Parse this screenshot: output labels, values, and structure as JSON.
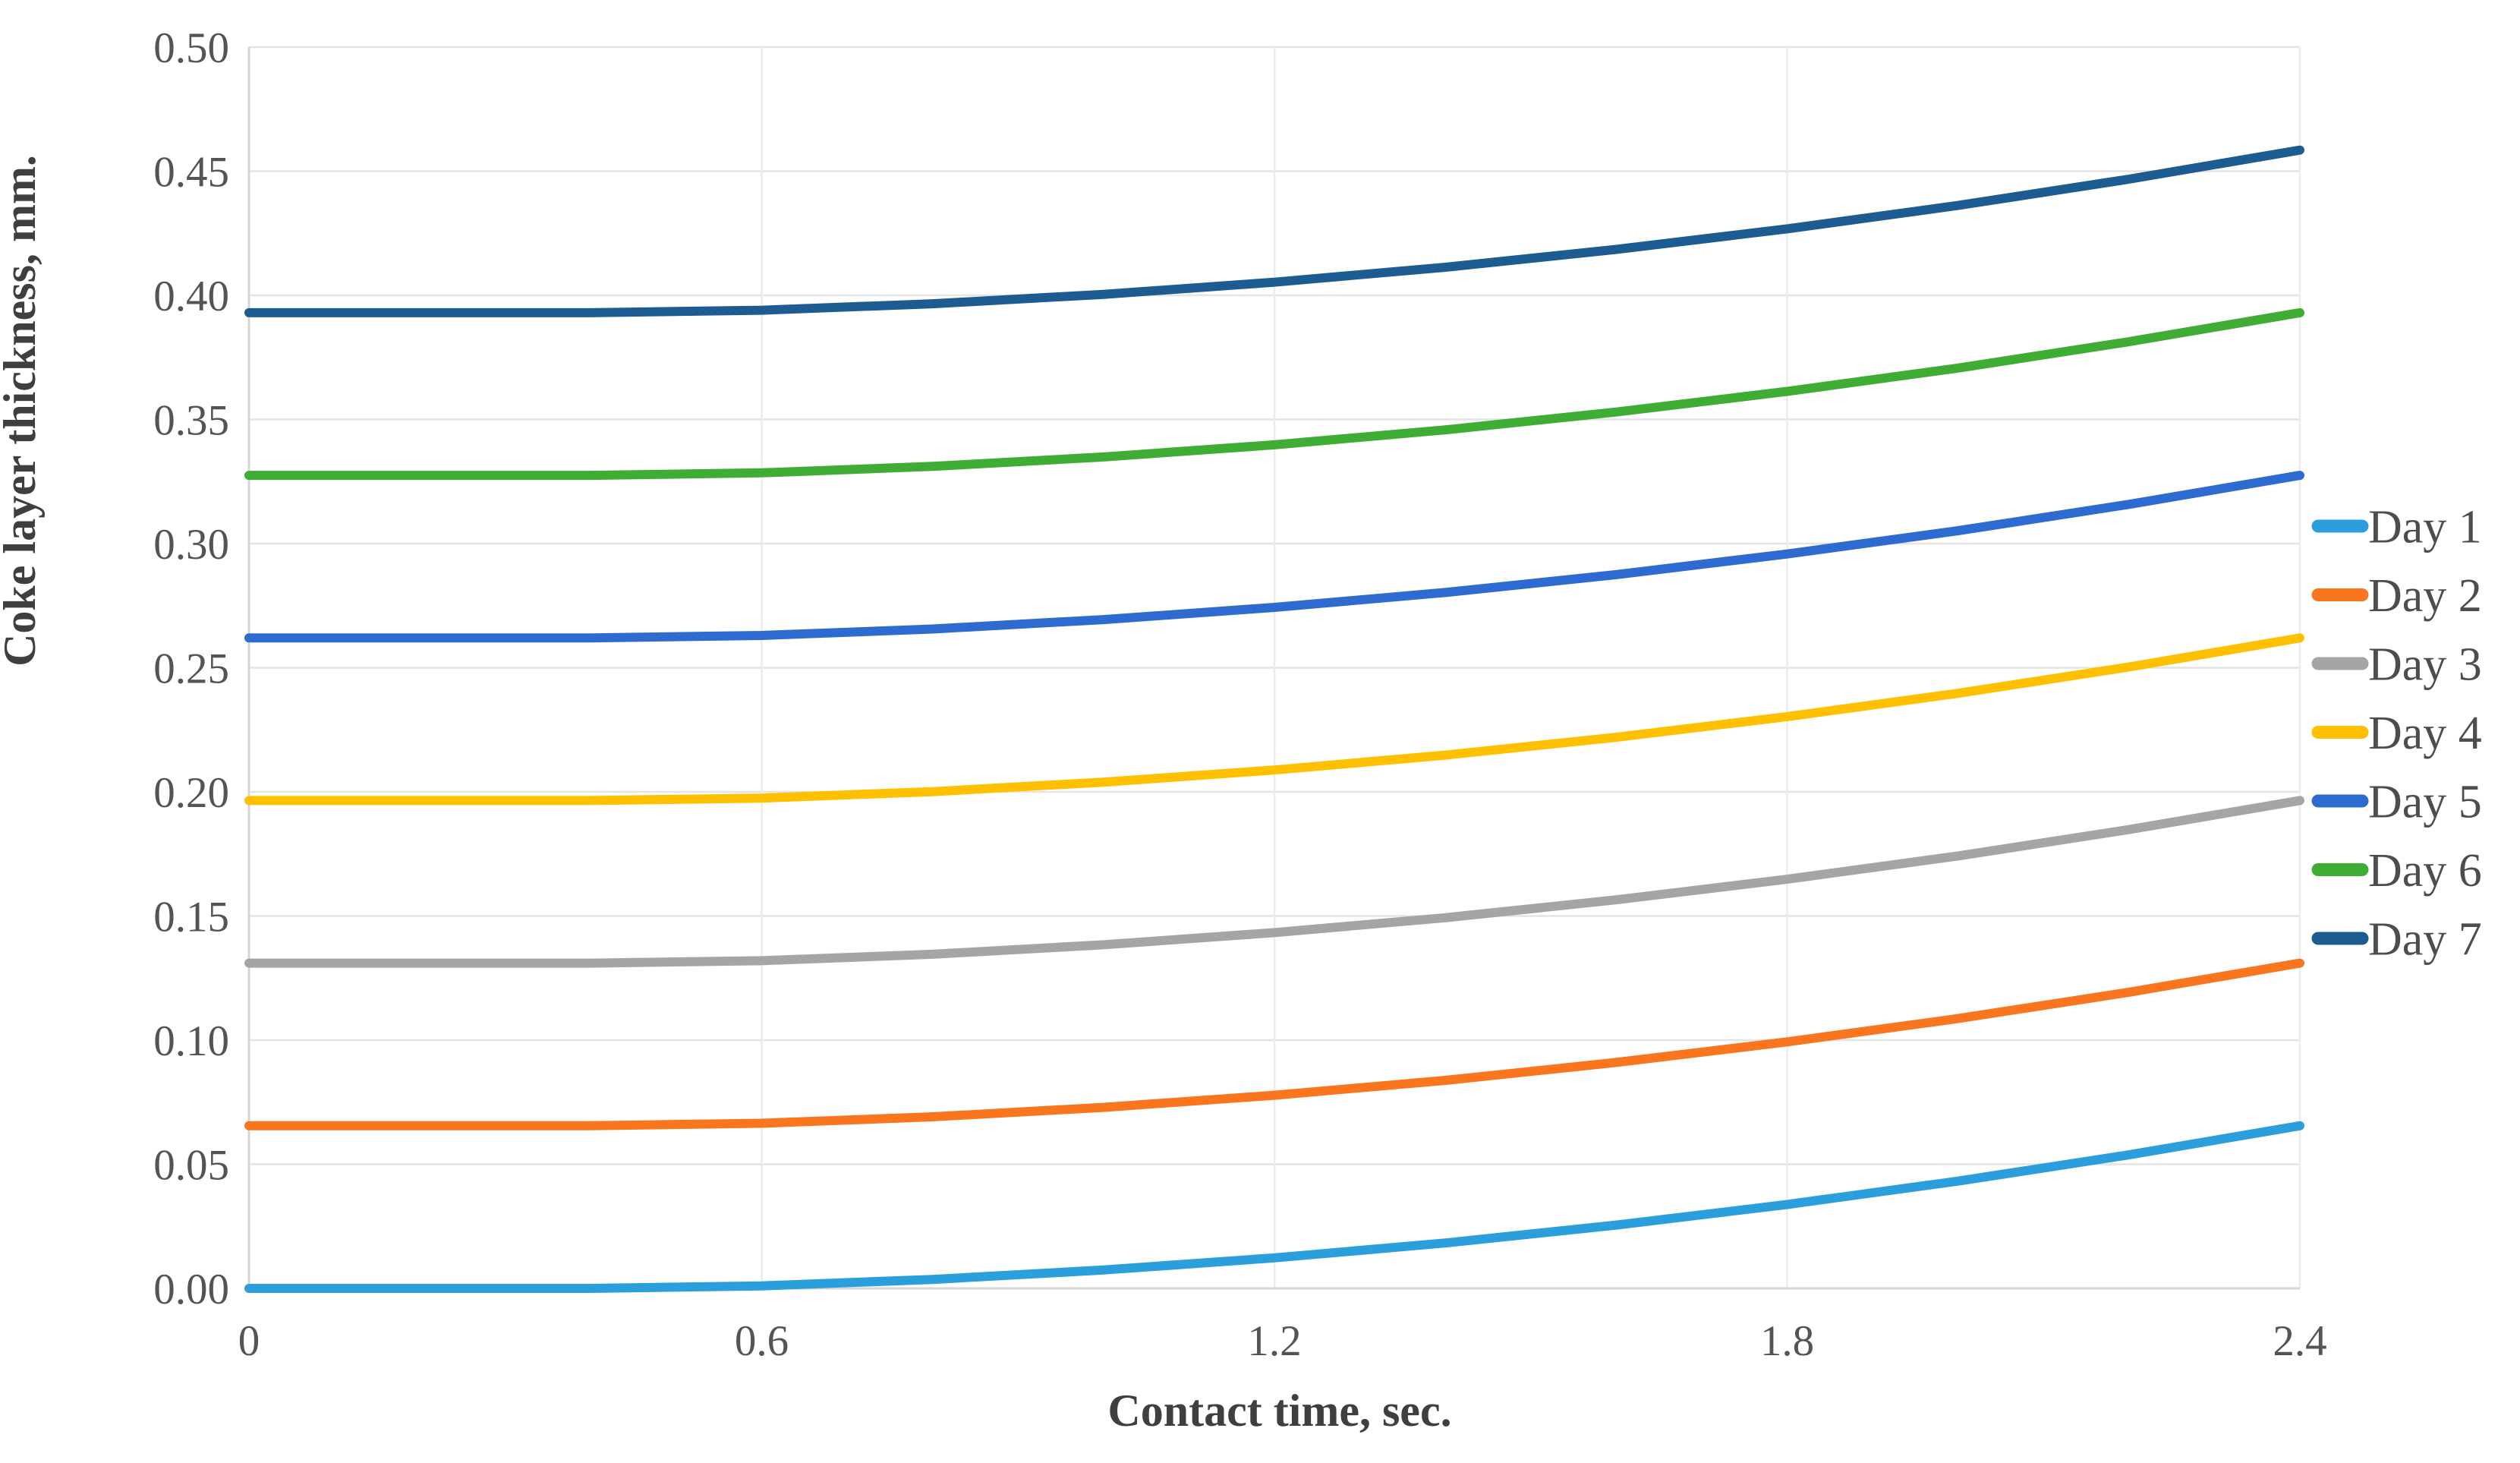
{
  "chart_data": {
    "type": "line",
    "title": "",
    "xlabel": "Contact time, sec.",
    "ylabel": "Coke layer thickness, mm.",
    "xlim": [
      0,
      2.4
    ],
    "ylim": [
      0,
      0.5
    ],
    "grid": true,
    "legend_position": "right",
    "x_ticks": [
      {
        "value": 0.0,
        "label": "0"
      },
      {
        "value": 0.6,
        "label": "0.6"
      },
      {
        "value": 1.2,
        "label": "1.2"
      },
      {
        "value": 1.8,
        "label": "1.8"
      },
      {
        "value": 2.4,
        "label": "2.4"
      }
    ],
    "y_ticks": [
      {
        "value": 0.0,
        "label": "0.00"
      },
      {
        "value": 0.05,
        "label": "0.05"
      },
      {
        "value": 0.1,
        "label": "0.10"
      },
      {
        "value": 0.15,
        "label": "0.15"
      },
      {
        "value": 0.2,
        "label": "0.20"
      },
      {
        "value": 0.25,
        "label": "0.25"
      },
      {
        "value": 0.3,
        "label": "0.30"
      },
      {
        "value": 0.35,
        "label": "0.35"
      },
      {
        "value": 0.4,
        "label": "0.40"
      },
      {
        "value": 0.45,
        "label": "0.45"
      },
      {
        "value": 0.5,
        "label": "0.50"
      }
    ],
    "x": [
      0,
      0.2,
      0.4,
      0.6,
      0.8,
      1.0,
      1.2,
      1.4,
      1.6,
      1.8,
      2.0,
      2.2,
      2.4
    ],
    "series": [
      {
        "name": "Day 1",
        "color": "#2b9fdc",
        "values": [
          0.0,
          0.0,
          0.0,
          0.001,
          0.0036,
          0.0074,
          0.0123,
          0.0183,
          0.0255,
          0.0338,
          0.0432,
          0.0538,
          0.0655
        ]
      },
      {
        "name": "Day 2",
        "color": "#f9761f",
        "values": [
          0.0655,
          0.0655,
          0.0655,
          0.0665,
          0.0691,
          0.0729,
          0.0778,
          0.0838,
          0.091,
          0.0993,
          0.1087,
          0.1193,
          0.131
        ]
      },
      {
        "name": "Day 3",
        "color": "#a5a5a5",
        "values": [
          0.131,
          0.131,
          0.131,
          0.132,
          0.1346,
          0.1384,
          0.1433,
          0.1493,
          0.1565,
          0.1648,
          0.1742,
          0.1848,
          0.1965
        ]
      },
      {
        "name": "Day 4",
        "color": "#ffc000",
        "values": [
          0.1965,
          0.1965,
          0.1965,
          0.1975,
          0.2001,
          0.2039,
          0.2088,
          0.2148,
          0.222,
          0.2303,
          0.2397,
          0.2503,
          0.262
        ]
      },
      {
        "name": "Day 5",
        "color": "#2e6bd1",
        "values": [
          0.262,
          0.262,
          0.262,
          0.263,
          0.2656,
          0.2694,
          0.2743,
          0.2803,
          0.2875,
          0.2958,
          0.3052,
          0.3158,
          0.3275
        ]
      },
      {
        "name": "Day 6",
        "color": "#3fac34",
        "values": [
          0.3275,
          0.3275,
          0.3275,
          0.3285,
          0.3311,
          0.3349,
          0.3398,
          0.3458,
          0.353,
          0.3613,
          0.3707,
          0.3813,
          0.393
        ]
      },
      {
        "name": "Day 7",
        "color": "#1d5c90",
        "values": [
          0.393,
          0.393,
          0.393,
          0.394,
          0.3966,
          0.4004,
          0.4053,
          0.4113,
          0.4185,
          0.4268,
          0.4362,
          0.4468,
          0.4585
        ]
      }
    ]
  },
  "style_colors": {
    "gridline": "#e4e4e4",
    "vertical_gridline": "#ececec",
    "axis_line": "#d6d6d6",
    "tick_text": "#545454",
    "axis_title_text": "#3f3f3f",
    "legend_text": "#4d4d4d",
    "background": "#ffffff"
  }
}
